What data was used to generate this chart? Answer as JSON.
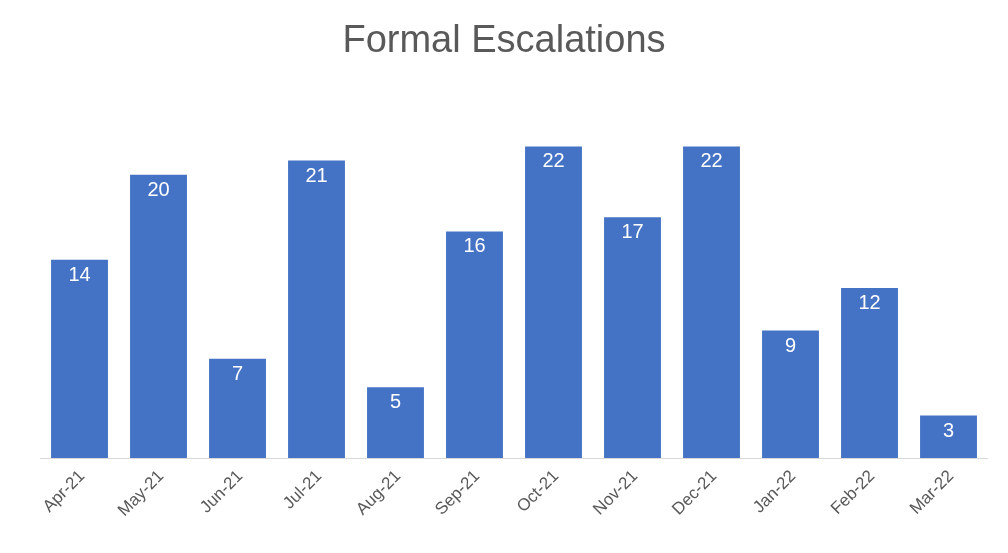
{
  "chart_data": {
    "type": "bar",
    "title": "Formal Escalations",
    "categories": [
      "Apr-21",
      "May-21",
      "Jun-21",
      "Jul-21",
      "Aug-21",
      "Sep-21",
      "Oct-21",
      "Nov-21",
      "Dec-21",
      "Jan-22",
      "Feb-22",
      "Mar-22"
    ],
    "values": [
      14,
      20,
      7,
      21,
      5,
      16,
      22,
      17,
      22,
      9,
      12,
      3
    ],
    "color": "#4472c4",
    "data_labels": true,
    "legend": false
  }
}
